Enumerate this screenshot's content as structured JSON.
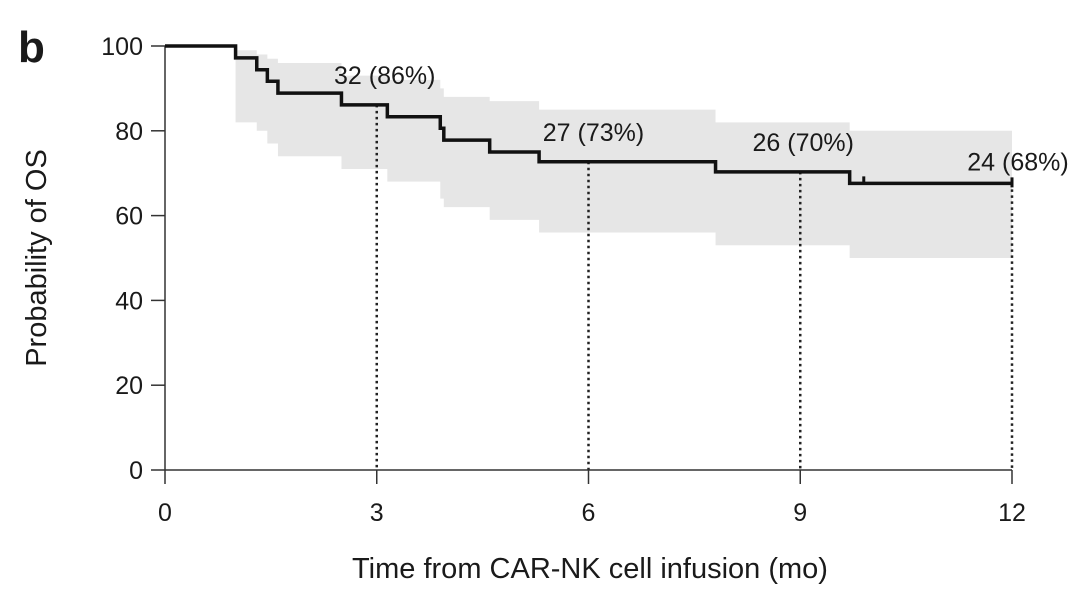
{
  "panel_label": "b",
  "chart_data": {
    "type": "line",
    "subtype": "kaplan-meier",
    "title": "",
    "xlabel": "Time from CAR-NK cell infusion (mo)",
    "ylabel": "Probability of OS",
    "xlim": [
      0,
      12
    ],
    "ylim": [
      0,
      100
    ],
    "xticks": [
      0,
      3,
      6,
      9,
      12
    ],
    "yticks": [
      0,
      20,
      40,
      60,
      80,
      100
    ],
    "grid": false,
    "colors": {
      "curve": "#111111",
      "ci_band": "#e6e6e6",
      "reference": "#222222"
    },
    "series": [
      {
        "name": "Overall survival",
        "step_x": [
          0,
          1.0,
          1.3,
          1.45,
          1.6,
          2.5,
          3.15,
          3.9,
          3.95,
          4.6,
          5.3,
          7.8,
          9.7,
          12.0
        ],
        "step_y": [
          100,
          97.2,
          94.4,
          91.7,
          88.9,
          86.1,
          83.3,
          80.6,
          77.8,
          75.0,
          72.7,
          70.3,
          67.6,
          67.6
        ],
        "ci_lower": [
          100,
          82,
          80,
          77,
          74,
          71,
          68,
          64,
          62,
          59,
          56,
          53,
          50,
          50
        ],
        "ci_upper": [
          100,
          99,
          98,
          97,
          96,
          93,
          92,
          90,
          88,
          87,
          85,
          82,
          80,
          80
        ],
        "censor_x": [
          9.9
        ],
        "censor_y": [
          67.6
        ]
      }
    ],
    "annotations": [
      {
        "x": 3,
        "y": 86.1,
        "label": "32 (86%)"
      },
      {
        "x": 6,
        "y": 72.7,
        "label": "27 (73%)"
      },
      {
        "x": 9,
        "y": 70.3,
        "label": "26 (70%)"
      },
      {
        "x": 12,
        "y": 67.6,
        "label": "24 (68%)"
      }
    ]
  }
}
